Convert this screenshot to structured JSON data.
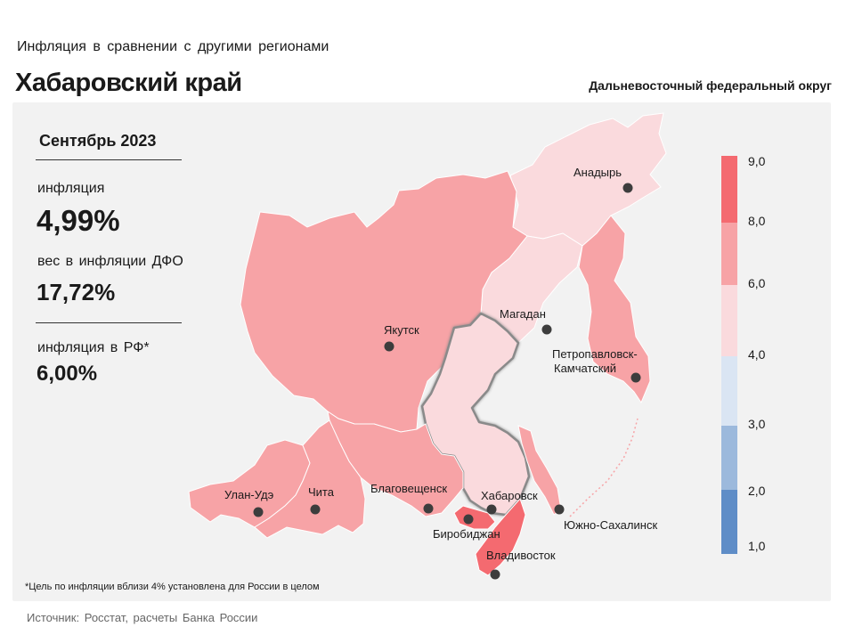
{
  "header": {
    "subtitle": "Инфляция  в сравнении  с другими  регионами",
    "title": "Хабаровский край",
    "district": "Дальневосточный федеральный округ"
  },
  "stats": {
    "period": "Сентябрь 2023",
    "inflation_label": "инфляция",
    "inflation_value": "4,99%",
    "weight_label": "вес в инфляции  ДФО",
    "weight_value": "17,72%",
    "rf_label": "инфляция  в РФ*",
    "rf_value": "6,00%"
  },
  "footnote": "*Цель по инфляции вблизи 4% установлена для России в целом",
  "source": "Источник: Росстат, расчеты  Банка России",
  "legend": {
    "ticks": [
      "9,0",
      "8,0",
      "6,0",
      "4,0",
      "3,0",
      "2,0",
      "1,0"
    ],
    "colors": [
      "#f46a70",
      "#f7a3a6",
      "#fadadd",
      "#dae5f3",
      "#9cb9dc",
      "#5f8dc7"
    ]
  },
  "colors": {
    "high": "#f46a70",
    "mid": "#f7a3a6",
    "low": "#fadadd",
    "panel": "#f2f2f2"
  },
  "cities": [
    {
      "name": "Анадырь"
    },
    {
      "name": "Магадан"
    },
    {
      "name": "Якутск"
    },
    {
      "name": "Петропавловск-"
    },
    {
      "name": "Камчатский"
    },
    {
      "name": "Улан-Удэ"
    },
    {
      "name": "Чита"
    },
    {
      "name": "Благовещенск"
    },
    {
      "name": "Хабаровск"
    },
    {
      "name": "Биробиджан"
    },
    {
      "name": "Южно-Сахалинск"
    },
    {
      "name": "Владивосток"
    }
  ]
}
